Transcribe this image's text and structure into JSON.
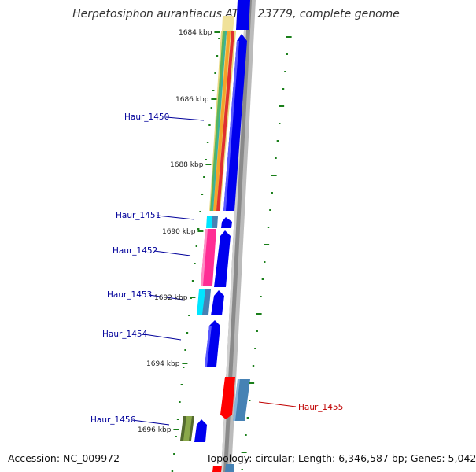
{
  "title": "Herpetosiphon aurantiacus ATCC 23779, complete genome",
  "footer": {
    "accession": "Accession: NC_009972",
    "topology": "Topology: circular; Length: 6,346,587 bp; Genes: 5,042"
  },
  "colors": {
    "forward_cds": "#0000ee",
    "reverse_cds": "#ff0000",
    "rna_pink": "#ff2d95",
    "rna_cyan": "#00e5ff",
    "steel": "#4682b4",
    "olive": "#556b2f",
    "tick": "#1a7f1a",
    "gene_label": "#00009a",
    "highlight_label": "#c00000",
    "backbone": "#888888"
  },
  "scale": {
    "ticks": [
      "1684 kbp",
      "1686 kbp",
      "1688 kbp",
      "1690 kbp",
      "1692 kbp",
      "1694 kbp",
      "1696 kbp"
    ]
  },
  "genes": [
    {
      "id": "Haur_1450",
      "label": "Haur_1450",
      "color": "gene_label"
    },
    {
      "id": "Haur_1451",
      "label": "Haur_1451",
      "color": "gene_label"
    },
    {
      "id": "Haur_1452",
      "label": "Haur_1452",
      "color": "gene_label"
    },
    {
      "id": "Haur_1453",
      "label": "Haur_1453",
      "color": "gene_label"
    },
    {
      "id": "Haur_1454",
      "label": "Haur_1454",
      "color": "gene_label"
    },
    {
      "id": "Haur_1455",
      "label": "Haur_1455",
      "color": "highlight_label"
    },
    {
      "id": "Haur_1456",
      "label": "Haur_1456",
      "color": "gene_label"
    }
  ]
}
